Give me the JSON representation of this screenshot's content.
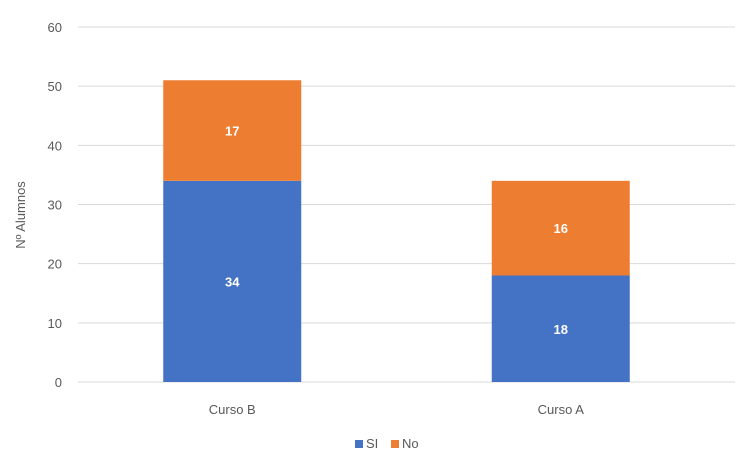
{
  "chart_data": {
    "type": "bar",
    "stacked": true,
    "categories": [
      "Curso B",
      "Curso A"
    ],
    "series": [
      {
        "name": "SI",
        "values": [
          34,
          18
        ],
        "color": "#4472C4"
      },
      {
        "name": "No",
        "values": [
          17,
          16
        ],
        "color": "#ED7D31"
      }
    ],
    "ylabel": "Nº Alumnos",
    "xlabel": "",
    "ylim": [
      0,
      60
    ],
    "yticks": [
      0,
      10,
      20,
      30,
      40,
      50,
      60
    ],
    "grid": true,
    "legend_position": "bottom",
    "gridline_color": "#d9d9d9"
  }
}
